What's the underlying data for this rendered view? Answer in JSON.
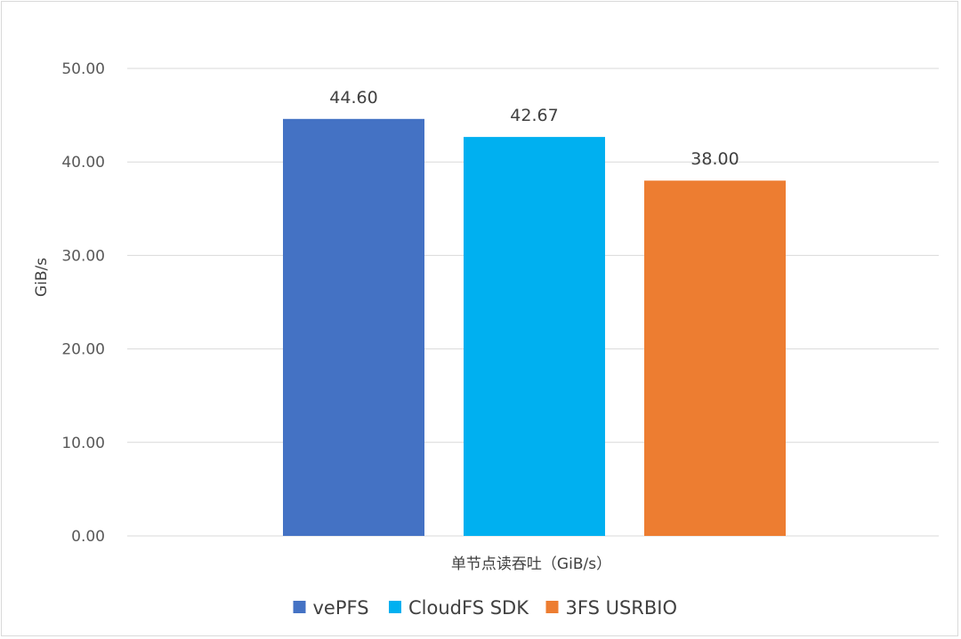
{
  "chart_data": {
    "type": "bar",
    "title": "",
    "xlabel": "单节点读吞吐（GiB/s）",
    "ylabel": "GiB/s",
    "ylim": [
      0,
      50
    ],
    "yticks": [
      "0.00",
      "10.00",
      "20.00",
      "30.00",
      "40.00",
      "50.00"
    ],
    "grid": true,
    "legend_position": "bottom",
    "series": [
      {
        "name": "vePFS",
        "value": 44.6,
        "label": "44.60",
        "color": "#4472C4"
      },
      {
        "name": "CloudFS SDK",
        "value": 42.67,
        "label": "42.67",
        "color": "#00B0F0"
      },
      {
        "name": "3FS USRBIO",
        "value": 38.0,
        "label": "38.00",
        "color": "#ED7D31"
      }
    ]
  }
}
